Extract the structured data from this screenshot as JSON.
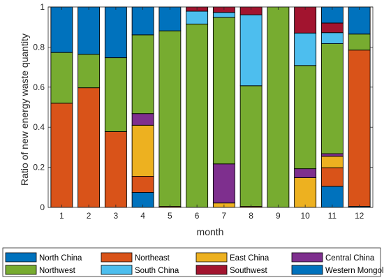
{
  "chart_data": {
    "type": "bar",
    "stacked": true,
    "normalized": true,
    "xlabel": "month",
    "ylabel": "Ratio of new energy waste quantity",
    "ylim": [
      0,
      1
    ],
    "yticks": [
      "0",
      "0.2",
      "0.4",
      "0.6",
      "0.8",
      "1"
    ],
    "categories": [
      "1",
      "2",
      "3",
      "4",
      "5",
      "6",
      "7",
      "8",
      "9",
      "10",
      "11",
      "12"
    ],
    "legend_position": "bottom",
    "legend_columns": 4,
    "series": [
      {
        "name": "Western Mongolia",
        "color": "#0072BD",
        "values": [
          0,
          0,
          0,
          0.075,
          0,
          0,
          0,
          0,
          0,
          0,
          0.105,
          0.005
        ]
      },
      {
        "name": "Northeast",
        "color": "#D95319",
        "values": [
          0.52,
          0.597,
          0.378,
          0.08,
          0.005,
          0,
          0,
          0.005,
          0,
          0,
          0.093,
          0.78
        ]
      },
      {
        "name": "East China",
        "color": "#EDB120",
        "values": [
          0,
          0,
          0,
          0.255,
          0,
          0,
          0.022,
          0,
          0,
          0.148,
          0.057,
          0
        ]
      },
      {
        "name": "Central China",
        "color": "#7E2F8E",
        "values": [
          0,
          0,
          0,
          0.058,
          0,
          0,
          0.195,
          0,
          0,
          0.045,
          0.013,
          0
        ]
      },
      {
        "name": "Northwest",
        "color": "#77AC30",
        "values": [
          0.253,
          0.167,
          0.369,
          0.393,
          0.876,
          0.915,
          0.731,
          0.602,
          1.0,
          0.515,
          0.549,
          0.08
        ]
      },
      {
        "name": "South China",
        "color": "#4DBEEE",
        "values": [
          0,
          0,
          0,
          0,
          0,
          0.064,
          0.025,
          0.354,
          0,
          0.162,
          0.055,
          0
        ]
      },
      {
        "name": "Southwest",
        "color": "#A2142F",
        "values": [
          0,
          0,
          0,
          0,
          0,
          0.021,
          0.027,
          0.039,
          0,
          0.13,
          0.048,
          0
        ]
      },
      {
        "name": "North China",
        "color": "#0072BD",
        "values": [
          0.227,
          0.236,
          0.253,
          0.139,
          0.119,
          0,
          0,
          0,
          0,
          0,
          0.08,
          0.135
        ]
      }
    ],
    "legend_entries": [
      {
        "name": "North China",
        "color": "#0072BD"
      },
      {
        "name": "Northeast",
        "color": "#D95319"
      },
      {
        "name": "East China",
        "color": "#EDB120"
      },
      {
        "name": "Central China",
        "color": "#7E2F8E"
      },
      {
        "name": "Northwest",
        "color": "#77AC30"
      },
      {
        "name": "South China",
        "color": "#4DBEEE"
      },
      {
        "name": "Southwest",
        "color": "#A2142F"
      },
      {
        "name": "Western Mongolia",
        "color": "#0072BD"
      }
    ]
  }
}
